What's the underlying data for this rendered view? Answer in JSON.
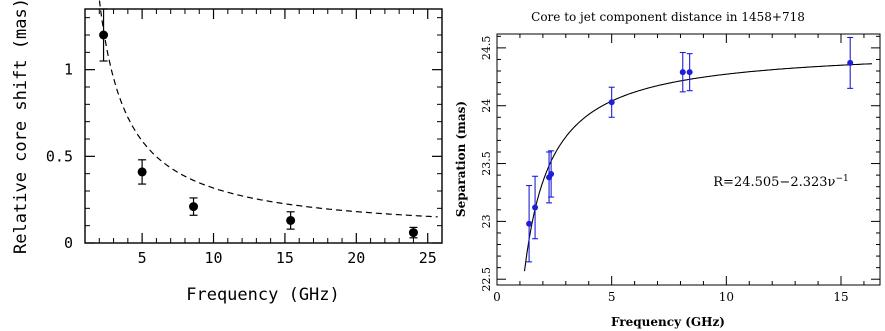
{
  "chart_data": [
    {
      "type": "scatter",
      "title": "",
      "xlabel": "Frequency (GHz)",
      "ylabel": "Relative core shift (mas)",
      "xlim": [
        1,
        26
      ],
      "ylim": [
        0,
        1.35
      ],
      "x_ticks": [
        5,
        10,
        15,
        20,
        25
      ],
      "x_tick_labels": [
        "5",
        "10",
        "15",
        "20",
        "25"
      ],
      "y_ticks": [
        0,
        0.5,
        1
      ],
      "y_tick_labels": [
        "0",
        "0.5",
        "1"
      ],
      "grid": false,
      "legend": "none",
      "color": "#000000",
      "series": [
        {
          "x": [
            2.3,
            5.0,
            8.6,
            15.4,
            24.0
          ],
          "y": [
            1.2,
            0.41,
            0.21,
            0.13,
            0.06
          ],
          "yerr": [
            0.15,
            0.07,
            0.05,
            0.05,
            0.03
          ]
        }
      ],
      "fit": {
        "style": "dashed"
      }
    },
    {
      "type": "scatter",
      "title": "Core to jet component distance in 1458+718",
      "xlabel": "Frequency (GHz)",
      "ylabel": "Separation (mas)",
      "xlim": [
        0,
        16.7
      ],
      "ylim": [
        22.45,
        24.62
      ],
      "x_ticks": [
        0,
        5,
        10,
        15
      ],
      "x_tick_labels": [
        "0",
        "5",
        "10",
        "15"
      ],
      "y_ticks": [
        22.5,
        23,
        23.5,
        24,
        24.5
      ],
      "y_tick_labels": [
        "22.5",
        "23",
        "23.5",
        "24",
        "24.5"
      ],
      "grid": false,
      "legend": "none",
      "color": "#1f1fd6",
      "series": [
        {
          "x": [
            1.4,
            1.66,
            2.27,
            2.36,
            5.0,
            8.1,
            8.4,
            15.4
          ],
          "y": [
            22.98,
            23.12,
            23.38,
            23.41,
            24.03,
            24.29,
            24.29,
            24.37
          ],
          "yerr": [
            0.33,
            0.27,
            0.22,
            0.2,
            0.13,
            0.17,
            0.16,
            0.22
          ]
        }
      ],
      "fit": {
        "a": 24.505,
        "b": 2.323,
        "style": "solid"
      },
      "annotation": {
        "prefix": "R=24.505−2.323ν",
        "superscript": "−1"
      }
    }
  ]
}
